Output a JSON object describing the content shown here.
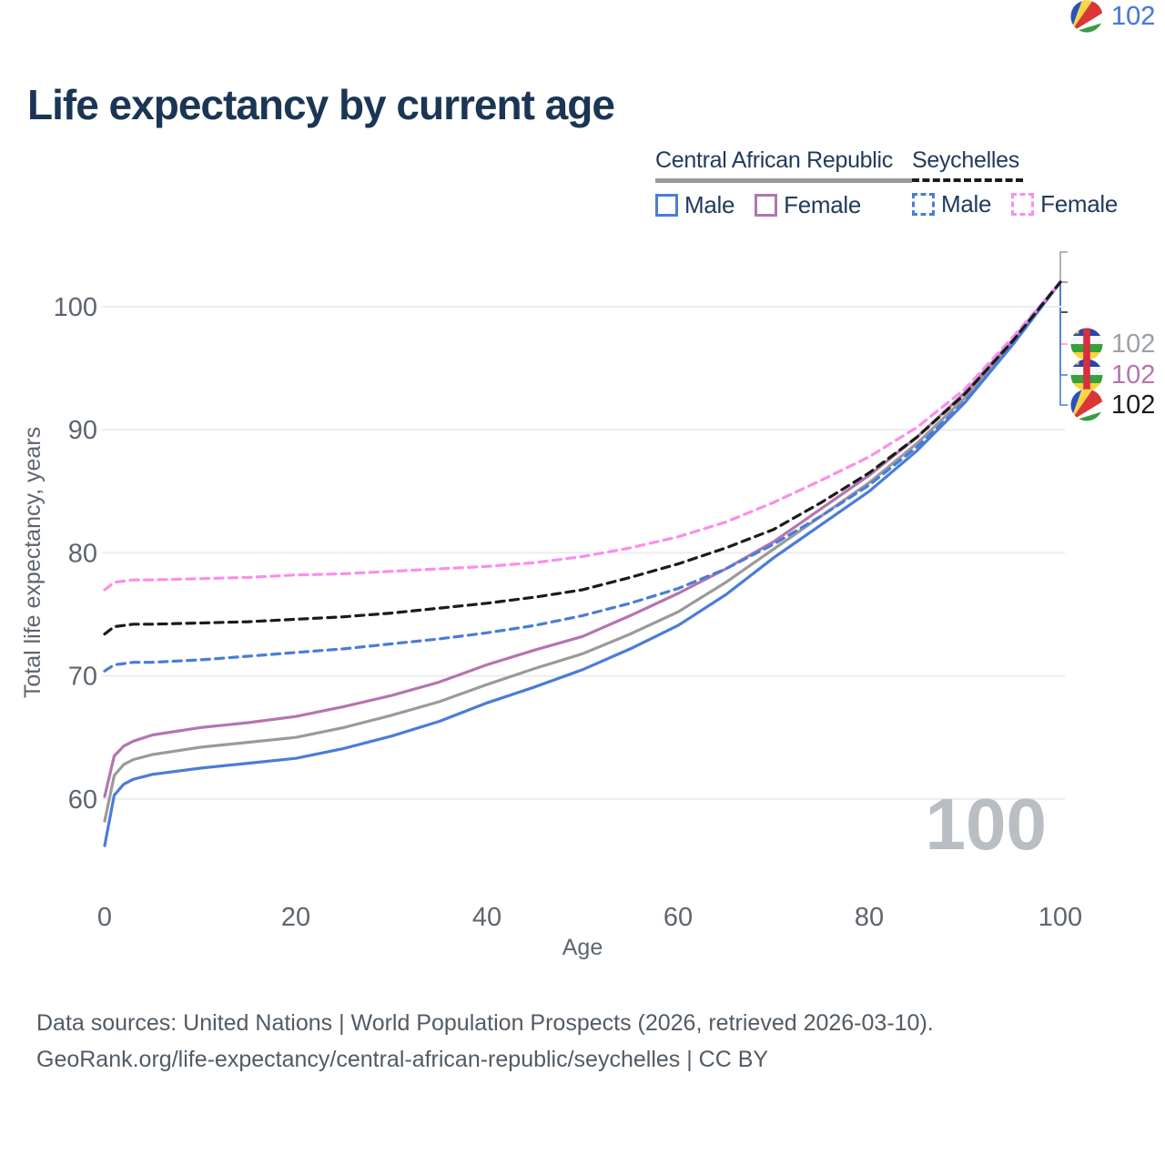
{
  "title": "Life expectancy by current age",
  "legend": {
    "groups": [
      {
        "label": "Central African Republic",
        "style": "solid",
        "color": "#9a9a9a",
        "items": [
          {
            "label": "Male",
            "color": "#4a7cd9",
            "dashed": false
          },
          {
            "label": "Female",
            "color": "#b475ae",
            "dashed": false
          }
        ]
      },
      {
        "label": "Seychelles",
        "style": "dashed",
        "color": "#1b1b1b",
        "items": [
          {
            "label": "Male",
            "color": "#4a7cd9",
            "dashed": true
          },
          {
            "label": "Female",
            "color": "#fb8ee9",
            "dashed": true
          }
        ]
      }
    ]
  },
  "chart_data": {
    "type": "line",
    "title": "Life expectancy by current age",
    "xlabel": "Age",
    "ylabel": "Total life expectancy, years",
    "x_ticks": [
      0,
      20,
      40,
      60,
      80,
      100
    ],
    "y_ticks": [
      60,
      70,
      80,
      90,
      100
    ],
    "xlim": [
      0,
      100
    ],
    "ylim": [
      55,
      104
    ],
    "grid": "horizontal",
    "legend_position": "top-right",
    "ages": [
      0,
      1,
      2,
      3,
      5,
      10,
      15,
      20,
      25,
      30,
      35,
      40,
      45,
      50,
      55,
      60,
      65,
      70,
      75,
      80,
      85,
      90,
      95,
      100
    ],
    "series": [
      {
        "name": "Central African Republic Male",
        "country": "Central African Republic",
        "sex": "Male",
        "color": "#4a7cd9",
        "dashed": false,
        "values": [
          56.2,
          60.3,
          61.2,
          61.6,
          62.0,
          62.5,
          62.9,
          63.3,
          64.1,
          65.1,
          66.3,
          67.8,
          69.1,
          70.5,
          72.2,
          74.1,
          76.6,
          79.6,
          82.3,
          85.0,
          88.3,
          92.2,
          96.9,
          102
        ]
      },
      {
        "name": "Central African Republic Female",
        "country": "Central African Republic",
        "sex": "Female",
        "color": "#b475ae",
        "dashed": false,
        "values": [
          60.2,
          63.5,
          64.3,
          64.7,
          65.2,
          65.8,
          66.2,
          66.7,
          67.5,
          68.4,
          69.5,
          70.9,
          72.1,
          73.2,
          74.9,
          76.7,
          78.7,
          80.9,
          83.6,
          86.3,
          89.4,
          93.0,
          97.3,
          102
        ]
      },
      {
        "name": "Central African Republic Total",
        "country": "Central African Republic",
        "sex": "Total",
        "color": "#9a9a9a",
        "dashed": false,
        "values": [
          58.2,
          61.9,
          62.8,
          63.2,
          63.6,
          64.2,
          64.6,
          65.0,
          65.8,
          66.8,
          67.9,
          69.3,
          70.6,
          71.8,
          73.4,
          75.2,
          77.6,
          80.3,
          83.0,
          85.7,
          88.9,
          92.6,
          97.1,
          102
        ]
      },
      {
        "name": "Seychelles Male",
        "country": "Seychelles",
        "sex": "Male",
        "color": "#4a7cd9",
        "dashed": true,
        "values": [
          70.4,
          70.9,
          71.0,
          71.1,
          71.1,
          71.3,
          71.6,
          71.9,
          72.2,
          72.6,
          73.0,
          73.5,
          74.1,
          74.9,
          75.9,
          77.1,
          78.7,
          80.7,
          83.0,
          85.5,
          88.6,
          92.3,
          96.9,
          102
        ]
      },
      {
        "name": "Seychelles Female",
        "country": "Seychelles",
        "sex": "Female",
        "color": "#fb8ee9",
        "dashed": true,
        "values": [
          77.0,
          77.6,
          77.7,
          77.8,
          77.8,
          77.9,
          78.0,
          78.2,
          78.3,
          78.5,
          78.7,
          78.9,
          79.2,
          79.7,
          80.4,
          81.3,
          82.5,
          84.1,
          85.9,
          87.8,
          90.2,
          93.3,
          97.5,
          102
        ]
      },
      {
        "name": "Seychelles Total",
        "country": "Seychelles",
        "sex": "Total",
        "color": "#1b1b1b",
        "dashed": true,
        "values": [
          73.4,
          74.0,
          74.1,
          74.2,
          74.2,
          74.3,
          74.4,
          74.6,
          74.8,
          75.1,
          75.5,
          75.9,
          76.4,
          77.0,
          78.0,
          79.1,
          80.4,
          81.9,
          84.1,
          86.5,
          89.4,
          92.9,
          97.2,
          102
        ]
      }
    ]
  },
  "end_labels": [
    {
      "value": "102",
      "flag": "central-african-republic",
      "color": "#9aa0a6",
      "series": "Central African Republic Total"
    },
    {
      "value": "102",
      "flag": "central-african-republic",
      "color": "#b475ae",
      "series": "Central African Republic Female"
    },
    {
      "value": "102",
      "flag": "seychelles",
      "color": "#1b1b1b",
      "series": "Seychelles Total"
    },
    {
      "value": "102",
      "flag": "seychelles",
      "color": "#fb8ee9",
      "series": "Seychelles Female"
    },
    {
      "value": "102",
      "flag": "central-african-republic",
      "color": "#4a7cd9",
      "series": "Central African Republic Male"
    },
    {
      "value": "102",
      "flag": "seychelles",
      "color": "#4a7cd9",
      "series": "Seychelles Male"
    }
  ],
  "watermark": "100",
  "footer": {
    "line1": "Data sources: United Nations | World Population Prospects (2026, retrieved 2026-03-10).",
    "line2": "GeoRank.org/life-expectancy/central-african-republic/seychelles | CC BY"
  }
}
